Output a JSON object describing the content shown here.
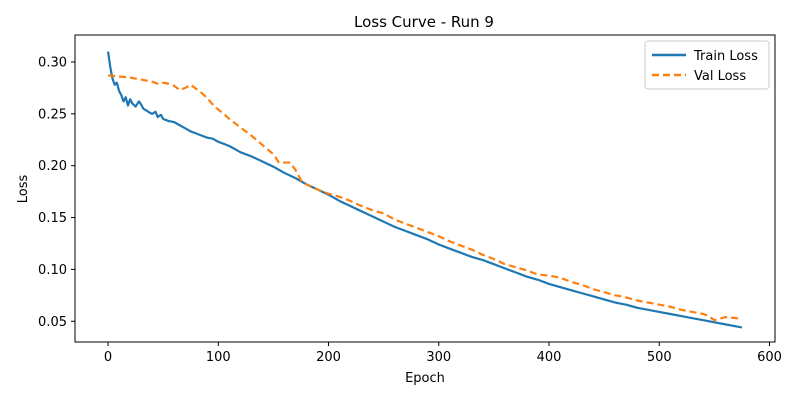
{
  "chart_data": {
    "type": "line",
    "title": "Loss Curve - Run 9",
    "xlabel": "Epoch",
    "ylabel": "Loss",
    "xlim": [
      -30,
      605
    ],
    "ylim": [
      0.03,
      0.326
    ],
    "xticks": [
      0,
      100,
      200,
      300,
      400,
      500,
      600
    ],
    "yticks": [
      0.05,
      0.1,
      0.15,
      0.2,
      0.25,
      0.3
    ],
    "ytick_labels": [
      "0.05",
      "0.10",
      "0.15",
      "0.20",
      "0.25",
      "0.30"
    ],
    "grid": false,
    "legend_position": "top-right",
    "series": [
      {
        "name": "Train Loss",
        "color": "#1f77b4",
        "style": "solid",
        "x": [
          0,
          2,
          4,
          6,
          8,
          10,
          12,
          14,
          16,
          18,
          20,
          22,
          25,
          28,
          30,
          32,
          35,
          38,
          40,
          43,
          45,
          48,
          50,
          55,
          60,
          65,
          70,
          75,
          80,
          85,
          90,
          95,
          100,
          105,
          110,
          115,
          120,
          130,
          140,
          150,
          160,
          170,
          180,
          190,
          200,
          210,
          220,
          230,
          240,
          250,
          260,
          270,
          280,
          290,
          300,
          310,
          320,
          330,
          340,
          350,
          360,
          370,
          380,
          390,
          400,
          410,
          420,
          430,
          440,
          450,
          460,
          470,
          480,
          490,
          500,
          510,
          520,
          530,
          540,
          550,
          560,
          570,
          575
        ],
        "y": [
          0.31,
          0.295,
          0.284,
          0.278,
          0.28,
          0.272,
          0.268,
          0.262,
          0.266,
          0.258,
          0.264,
          0.26,
          0.257,
          0.262,
          0.259,
          0.255,
          0.253,
          0.251,
          0.25,
          0.252,
          0.247,
          0.249,
          0.245,
          0.243,
          0.242,
          0.239,
          0.236,
          0.233,
          0.231,
          0.229,
          0.227,
          0.226,
          0.223,
          0.221,
          0.219,
          0.216,
          0.213,
          0.209,
          0.204,
          0.199,
          0.193,
          0.188,
          0.182,
          0.177,
          0.172,
          0.166,
          0.161,
          0.156,
          0.151,
          0.146,
          0.141,
          0.137,
          0.133,
          0.129,
          0.124,
          0.12,
          0.116,
          0.112,
          0.109,
          0.105,
          0.101,
          0.097,
          0.093,
          0.09,
          0.086,
          0.083,
          0.08,
          0.077,
          0.074,
          0.071,
          0.068,
          0.066,
          0.063,
          0.061,
          0.059,
          0.057,
          0.055,
          0.053,
          0.051,
          0.049,
          0.047,
          0.045,
          0.044
        ]
      },
      {
        "name": "Val Loss",
        "color": "#ff7f0e",
        "style": "dashed",
        "x": [
          0,
          10,
          20,
          30,
          40,
          45,
          50,
          55,
          60,
          65,
          70,
          75,
          80,
          85,
          90,
          95,
          100,
          105,
          110,
          115,
          120,
          130,
          140,
          150,
          155,
          160,
          165,
          170,
          175,
          180,
          190,
          200,
          210,
          220,
          230,
          240,
          250,
          260,
          270,
          280,
          290,
          300,
          310,
          320,
          330,
          340,
          350,
          360,
          370,
          380,
          390,
          400,
          410,
          420,
          430,
          440,
          450,
          460,
          470,
          480,
          490,
          500,
          510,
          520,
          530,
          540,
          545,
          550,
          560,
          570,
          575
        ],
        "y": [
          0.287,
          0.286,
          0.285,
          0.283,
          0.281,
          0.279,
          0.28,
          0.279,
          0.277,
          0.273,
          0.275,
          0.278,
          0.274,
          0.27,
          0.265,
          0.259,
          0.254,
          0.25,
          0.245,
          0.241,
          0.237,
          0.229,
          0.22,
          0.211,
          0.203,
          0.203,
          0.203,
          0.196,
          0.186,
          0.182,
          0.177,
          0.173,
          0.17,
          0.166,
          0.161,
          0.157,
          0.154,
          0.148,
          0.144,
          0.14,
          0.136,
          0.132,
          0.127,
          0.123,
          0.119,
          0.114,
          0.11,
          0.105,
          0.102,
          0.099,
          0.095,
          0.094,
          0.092,
          0.088,
          0.085,
          0.081,
          0.078,
          0.075,
          0.073,
          0.07,
          0.068,
          0.066,
          0.064,
          0.061,
          0.059,
          0.057,
          0.055,
          0.051,
          0.054,
          0.053,
          0.052
        ]
      }
    ]
  }
}
